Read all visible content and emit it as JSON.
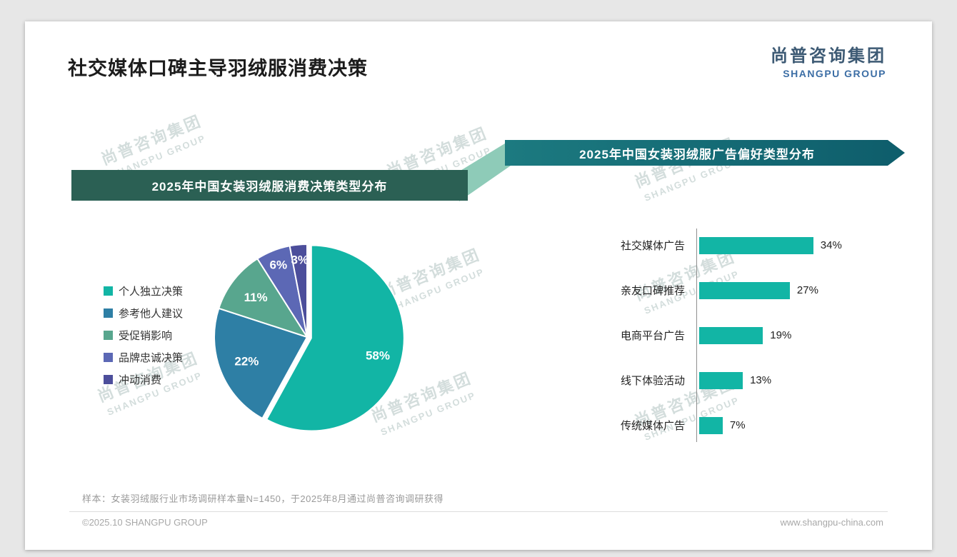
{
  "header": {
    "title": "社交媒体口碑主导羽绒服消费决策",
    "logo_cn": "尚普咨询集团",
    "logo_en": "SHANGPU GROUP"
  },
  "watermark": {
    "line1": "尚普咨询集团",
    "line2": "SHANGPU GROUP"
  },
  "colors": {
    "accent_teal": "#12b5a5",
    "banner_left_bg": "#2b6054",
    "banner_right_bg_start": "#1c7a80",
    "banner_right_bg_end": "#0e5d6b",
    "connector": "#8ecbb8"
  },
  "chart_data": [
    {
      "type": "pie",
      "title": "2025年中国女装羽绒服消费决策类型分布",
      "labels": [
        "个人独立决策",
        "参考他人建议",
        "受促销影响",
        "品牌忠诚决策",
        "冲动消费"
      ],
      "values": [
        58,
        22,
        11,
        6,
        3
      ],
      "unit": "%",
      "colors": [
        "#12b5a5",
        "#2e7fa5",
        "#58a68e",
        "#5c68b5",
        "#4c4e9b"
      ],
      "legend_position": "left",
      "start_angle": "top",
      "direction": "clockwise"
    },
    {
      "type": "bar",
      "orientation": "horizontal",
      "title": "2025年中国女装羽绒服广告偏好类型分布",
      "categories": [
        "社交媒体广告",
        "亲友口碑推荐",
        "电商平台广告",
        "线下体验活动",
        "传统媒体广告"
      ],
      "values": [
        34,
        27,
        19,
        13,
        7
      ],
      "unit": "%",
      "bar_color": "#12b5a5",
      "xlim": [
        0,
        40
      ],
      "grid": false,
      "value_labels": "right-of-bar"
    }
  ],
  "footnote": "样本：女装羽绒服行业市场调研样本量N=1450，于2025年8月通过尚普咨询调研获得",
  "footer": {
    "copyright": "©2025.10 SHANGPU GROUP",
    "website": "www.shangpu-china.com"
  }
}
